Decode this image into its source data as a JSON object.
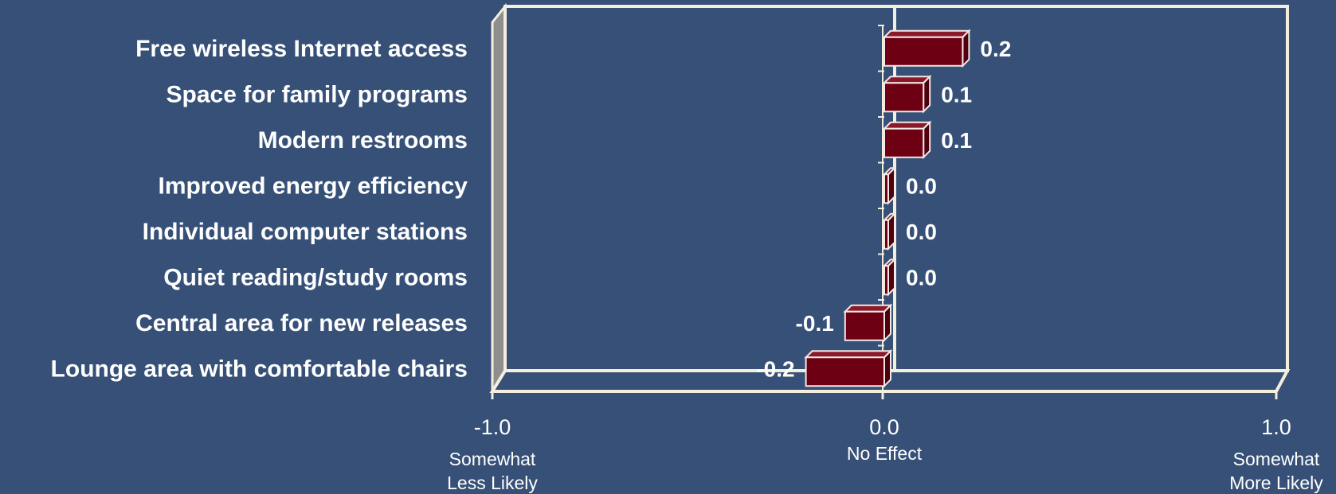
{
  "chart_data": {
    "type": "bar",
    "orientation": "horizontal",
    "style": "3d",
    "categories": [
      "Free wireless Internet access",
      "Space for family  programs",
      "Modern restrooms",
      "Improved energy efficiency",
      "Individual computer stations",
      "Quiet reading/study rooms",
      "Central area for new releases",
      "Lounge area with comfortable chairs"
    ],
    "values": [
      0.2,
      0.1,
      0.1,
      0.0,
      0.0,
      0.0,
      -0.1,
      -0.2
    ],
    "value_labels": [
      "0.2",
      "0.1",
      "0.1",
      "0.0",
      "0.0",
      "0.0",
      "-0.1",
      "-0.2"
    ],
    "xlim": [
      -1.0,
      1.0
    ],
    "x_ticks": [
      {
        "value": -1.0,
        "label": "-1.0",
        "description": [
          "Somewhat",
          "Less Likely"
        ]
      },
      {
        "value": 0.0,
        "label": "0.0",
        "description": [
          "No Effect"
        ]
      },
      {
        "value": 1.0,
        "label": "1.0",
        "description": [
          "Somewhat",
          "More Likely"
        ]
      }
    ],
    "title": "",
    "xlabel": "",
    "ylabel": "",
    "grid": false,
    "legend": "none",
    "colors": {
      "background": "#365077",
      "bar_front": "#6E0014",
      "bar_top": "#8A1A2A",
      "bar_side": "#4E000E",
      "bar_edge": "#F2E8E4",
      "wall_line": "#F4EEDC",
      "left_wall": "#8E8E8E",
      "text": "#FFFFFF"
    }
  }
}
